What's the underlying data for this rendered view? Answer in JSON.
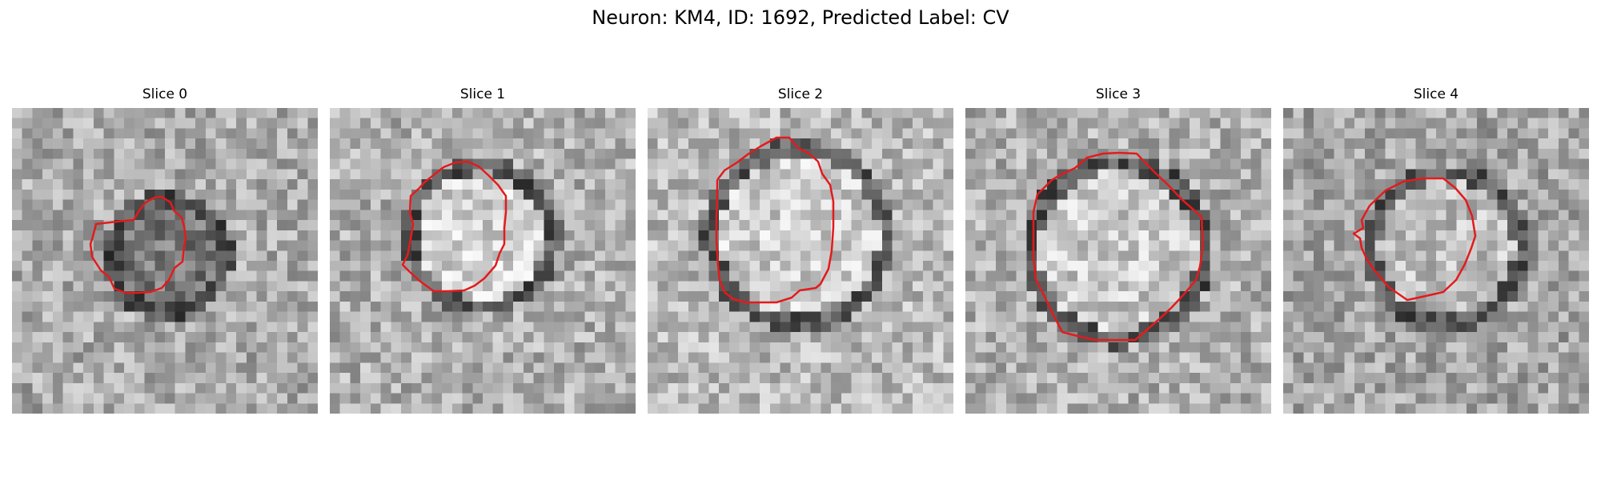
{
  "title": "Neuron: KM4, ID: 1692, Predicted Label: CV",
  "contour_color": "#e41a1c",
  "colormap": "gray",
  "slices": [
    {
      "label": "Slice 0"
    },
    {
      "label": "Slice 1"
    },
    {
      "label": "Slice 2"
    },
    {
      "label": "Slice 3"
    },
    {
      "label": "Slice 4"
    }
  ]
}
